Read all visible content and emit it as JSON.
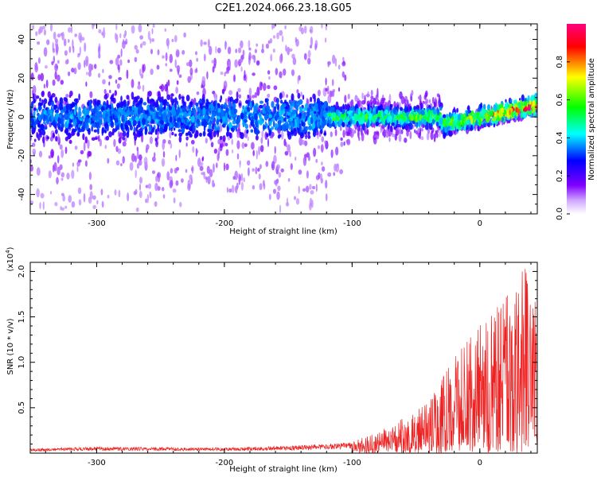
{
  "title": "C2E1.2024.066.23.18.G05",
  "chart_data": [
    {
      "type": "heatmap",
      "xlabel": "Height of straight line (km)",
      "ylabel": "Frequency (Hz)",
      "xlim": [
        -352,
        45
      ],
      "ylim": [
        -50,
        48
      ],
      "xticks": [
        -300,
        -200,
        -100,
        0
      ],
      "xtick_labels": [
        "-300",
        "-200",
        "-100",
        "0"
      ],
      "yticks": [
        -40,
        -20,
        0,
        20,
        40
      ],
      "ytick_labels": [
        "-40",
        "-20",
        "0",
        "20",
        "40"
      ],
      "band_center_hz": 0,
      "colorbar": {
        "label": "Normalized spectral amplitude",
        "range": [
          0,
          1
        ],
        "ticks": [
          0.0,
          0.2,
          0.4,
          0.6,
          0.8
        ],
        "tick_labels": [
          "0.0",
          "0.2",
          "0.4",
          "0.6",
          "0.8"
        ],
        "colormap": [
          "#ffffff",
          "#7a00ff",
          "#0000ff",
          "#00ffff",
          "#00ff00",
          "#ffff00",
          "#ff0000",
          "#ff0080"
        ]
      },
      "intensity_profile": [
        {
          "x": -352,
          "amp": 0.3
        },
        {
          "x": -230,
          "amp": 0.35
        },
        {
          "x": -120,
          "amp": 0.45
        },
        {
          "x": -50,
          "amp": 0.5
        },
        {
          "x": -20,
          "amp": 0.6
        },
        {
          "x": 0,
          "amp": 0.65
        },
        {
          "x": 30,
          "amp": 0.85
        },
        {
          "x": 45,
          "amp": 0.9
        }
      ]
    },
    {
      "type": "line",
      "xlabel": "Height of straight line (km)",
      "ylabel": "SNR (10 * v/v)",
      "y_scale_label": "(x10",
      "y_scale_exp": "4",
      "y_scale_close": ")",
      "xlim": [
        -352,
        45
      ],
      "ylim": [
        0,
        2.1
      ],
      "xticks": [
        -300,
        -200,
        -100,
        0
      ],
      "xtick_labels": [
        "-300",
        "-200",
        "-100",
        "0"
      ],
      "yticks": [
        0.5,
        1.0,
        1.5,
        2.0
      ],
      "ytick_labels": [
        "0.5",
        "1.0",
        "1.5",
        "2.0"
      ],
      "color": "#ee2222",
      "envelope": [
        {
          "x": -352,
          "y": 0.05
        },
        {
          "x": -300,
          "y": 0.07
        },
        {
          "x": -200,
          "y": 0.06
        },
        {
          "x": -150,
          "y": 0.08
        },
        {
          "x": -100,
          "y": 0.12
        },
        {
          "x": -70,
          "y": 0.3
        },
        {
          "x": -40,
          "y": 0.55
        },
        {
          "x": -20,
          "y": 1.05
        },
        {
          "x": 0,
          "y": 1.4
        },
        {
          "x": 20,
          "y": 1.7
        },
        {
          "x": 35,
          "y": 2.05
        },
        {
          "x": 45,
          "y": 1.6
        }
      ]
    }
  ]
}
